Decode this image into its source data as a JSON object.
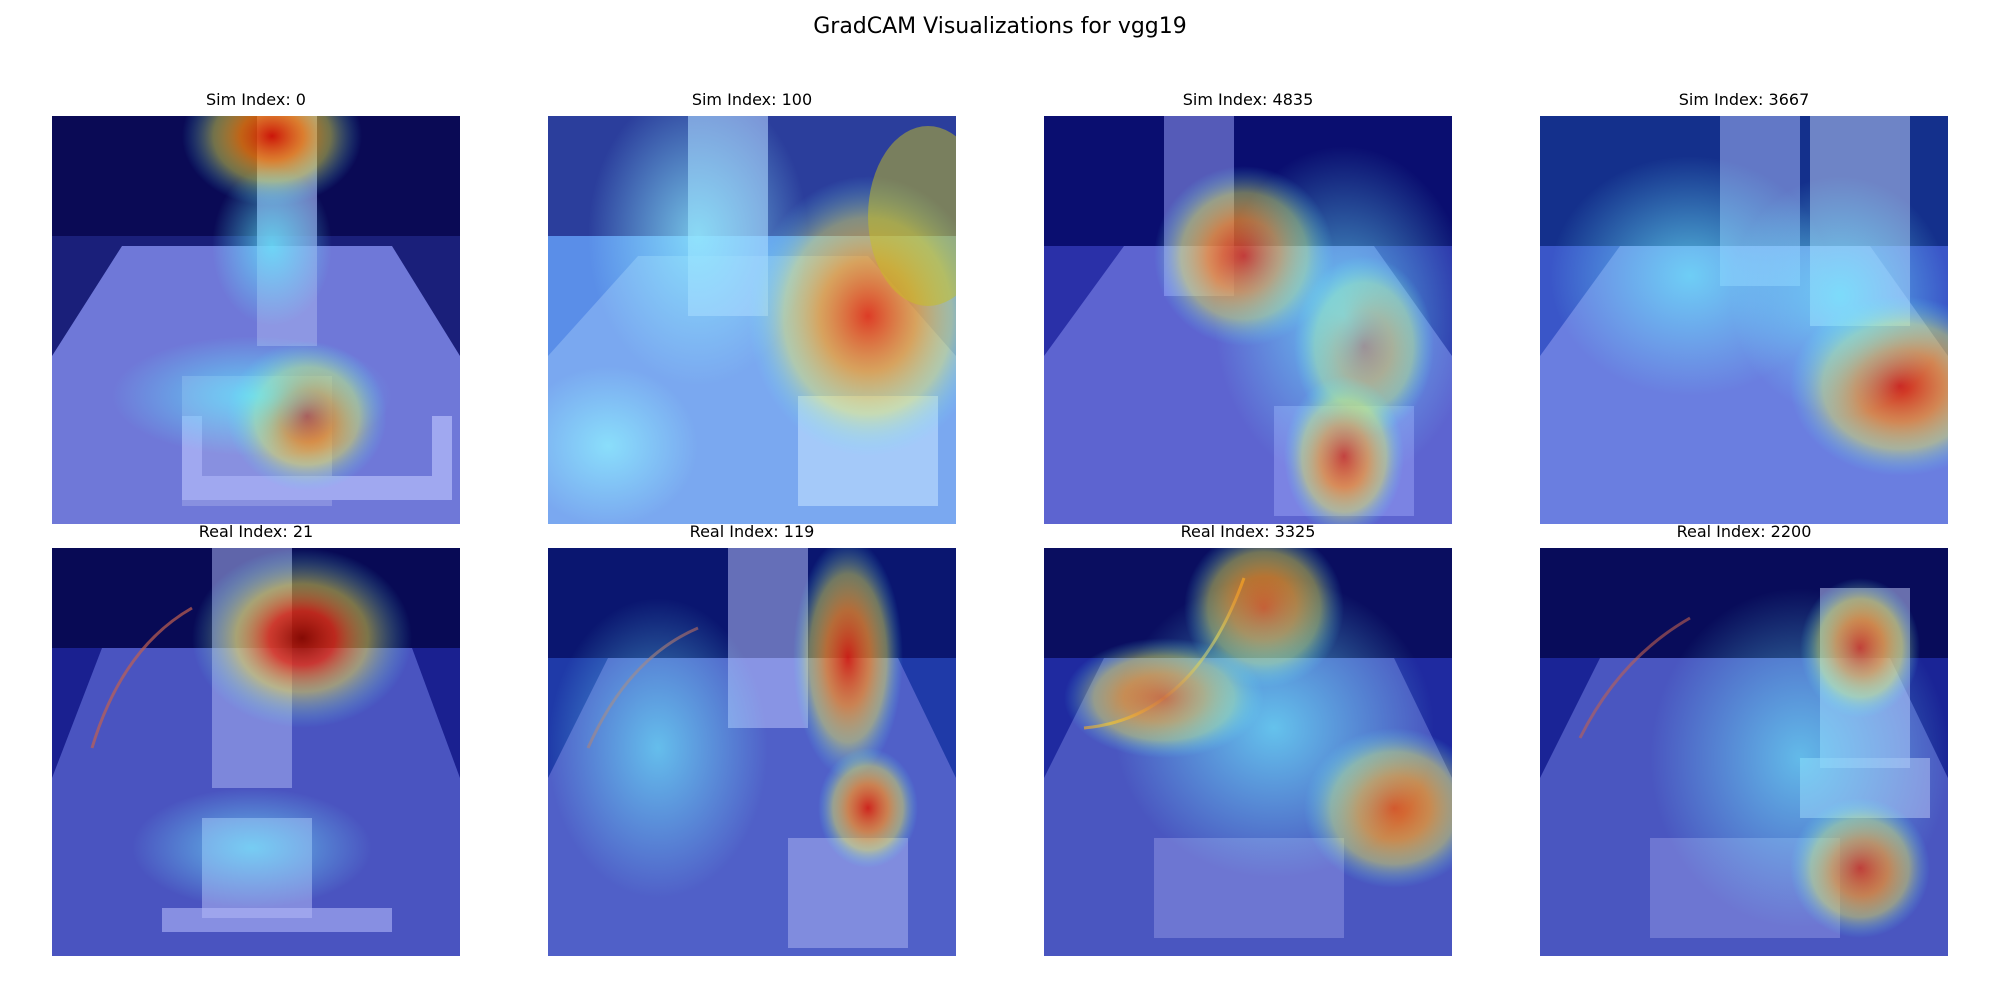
{
  "figure": {
    "title": "GradCAM Visualizations for vgg19"
  },
  "panels": [
    {
      "title": "Sim Index: 0"
    },
    {
      "title": "Sim Index: 100"
    },
    {
      "title": "Sim Index: 4835"
    },
    {
      "title": "Sim Index: 3667"
    },
    {
      "title": "Real Index: 21"
    },
    {
      "title": "Real Index: 119"
    },
    {
      "title": "Real Index: 3325"
    },
    {
      "title": "Real Index: 2200"
    }
  ]
}
